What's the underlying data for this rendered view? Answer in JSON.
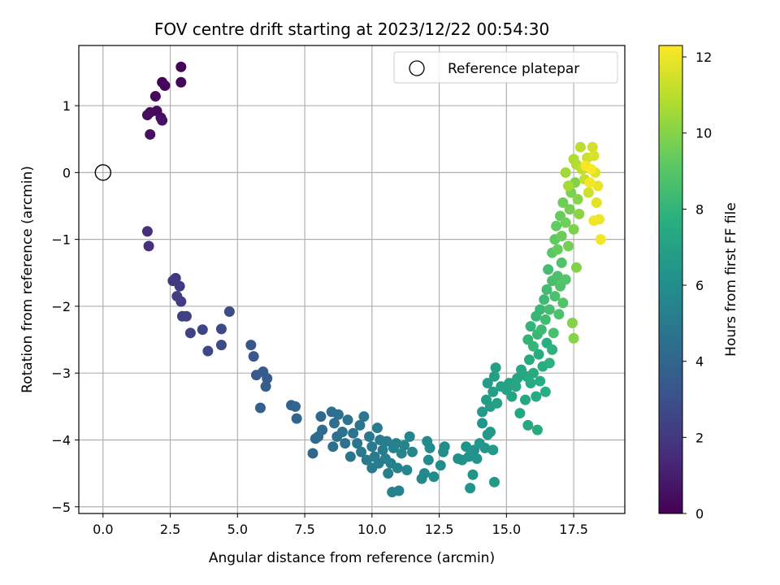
{
  "chart_data": {
    "type": "scatter",
    "title": "FOV centre drift starting at 2023/12/22 00:54:30",
    "xlabel": "Angular distance from reference (arcmin)",
    "ylabel": "Rotation from reference (arcmin)",
    "xlim": [
      -0.9,
      19.4
    ],
    "ylim": [
      -5.1,
      1.9
    ],
    "x_ticks": [
      "0.0",
      "2.5",
      "5.0",
      "7.5",
      "10.0",
      "12.5",
      "15.0",
      "17.5"
    ],
    "y_ticks": [
      "−5",
      "−4",
      "−3",
      "−2",
      "−1",
      "0",
      "1"
    ],
    "grid": true,
    "legend": {
      "position": "top-right",
      "entries": [
        "Reference platepar"
      ]
    },
    "reference_point": {
      "x": 0.0,
      "y": 0.0,
      "label": "Reference platepar"
    },
    "colorbar": {
      "label": "Hours from first FF file",
      "colormap": "viridis",
      "min": 0,
      "max": 12.3,
      "ticks": [
        "0",
        "2",
        "4",
        "6",
        "8",
        "10",
        "12"
      ]
    },
    "points": [
      [
        2.9,
        1.58,
        0.1
      ],
      [
        2.2,
        1.35,
        0.15
      ],
      [
        2.3,
        1.3,
        0.2
      ],
      [
        2.9,
        1.35,
        0.25
      ],
      [
        1.95,
        1.14,
        0.3
      ],
      [
        2.0,
        0.92,
        0.35
      ],
      [
        1.75,
        0.9,
        0.4
      ],
      [
        1.65,
        0.86,
        0.45
      ],
      [
        2.15,
        0.82,
        0.5
      ],
      [
        2.2,
        0.78,
        0.55
      ],
      [
        1.75,
        0.57,
        0.6
      ],
      [
        1.65,
        -0.88,
        1.6
      ],
      [
        1.7,
        -1.1,
        1.7
      ],
      [
        2.6,
        -1.62,
        2.0
      ],
      [
        2.7,
        -1.58,
        2.05
      ],
      [
        2.85,
        -1.7,
        2.1
      ],
      [
        2.75,
        -1.85,
        2.15
      ],
      [
        2.9,
        -1.93,
        2.2
      ],
      [
        2.95,
        -2.15,
        2.3
      ],
      [
        3.1,
        -2.15,
        2.35
      ],
      [
        3.25,
        -2.4,
        2.4
      ],
      [
        3.7,
        -2.35,
        2.5
      ],
      [
        3.9,
        -2.67,
        2.6
      ],
      [
        4.4,
        -2.34,
        2.7
      ],
      [
        4.4,
        -2.58,
        2.8
      ],
      [
        4.7,
        -2.08,
        2.9
      ],
      [
        5.5,
        -2.58,
        3.2
      ],
      [
        5.6,
        -2.75,
        3.3
      ],
      [
        5.7,
        -3.03,
        3.4
      ],
      [
        5.95,
        -2.98,
        3.5
      ],
      [
        6.1,
        -3.08,
        3.55
      ],
      [
        6.05,
        -3.2,
        3.6
      ],
      [
        5.85,
        -3.52,
        3.7
      ],
      [
        7.0,
        -3.48,
        3.9
      ],
      [
        7.15,
        -3.5,
        3.95
      ],
      [
        7.2,
        -3.68,
        4.0
      ],
      [
        7.8,
        -4.2,
        4.1
      ],
      [
        7.9,
        -3.98,
        4.15
      ],
      [
        8.1,
        -3.65,
        4.2
      ],
      [
        8.15,
        -3.85,
        4.25
      ],
      [
        8.0,
        -3.95,
        4.3
      ],
      [
        8.5,
        -3.58,
        4.4
      ],
      [
        8.6,
        -3.75,
        4.45
      ],
      [
        8.75,
        -3.62,
        4.5
      ],
      [
        8.55,
        -4.1,
        4.5
      ],
      [
        8.7,
        -3.95,
        4.55
      ],
      [
        8.9,
        -3.88,
        4.6
      ],
      [
        9.0,
        -4.05,
        4.6
      ],
      [
        9.1,
        -3.7,
        4.65
      ],
      [
        9.2,
        -4.25,
        4.7
      ],
      [
        9.3,
        -3.9,
        4.7
      ],
      [
        9.45,
        -4.05,
        4.75
      ],
      [
        9.55,
        -3.78,
        4.8
      ],
      [
        9.7,
        -3.65,
        4.85
      ],
      [
        9.6,
        -4.18,
        4.85
      ],
      [
        9.8,
        -4.3,
        4.9
      ],
      [
        9.9,
        -3.95,
        4.9
      ],
      [
        10.0,
        -4.1,
        4.95
      ],
      [
        10.0,
        -4.42,
        5.0
      ],
      [
        10.1,
        -4.25,
        5.0
      ],
      [
        10.2,
        -3.82,
        5.05
      ],
      [
        10.3,
        -4.0,
        5.05
      ],
      [
        10.25,
        -4.35,
        5.1
      ],
      [
        10.4,
        -4.15,
        5.15
      ],
      [
        10.5,
        -4.28,
        5.2
      ],
      [
        10.55,
        -4.02,
        5.2
      ],
      [
        10.6,
        -4.5,
        5.25
      ],
      [
        10.7,
        -4.35,
        5.3
      ],
      [
        10.8,
        -4.12,
        5.3
      ],
      [
        10.9,
        -4.05,
        5.35
      ],
      [
        10.75,
        -4.78,
        5.4
      ],
      [
        10.95,
        -4.42,
        5.4
      ],
      [
        11.0,
        -4.76,
        5.45
      ],
      [
        11.1,
        -4.2,
        5.5
      ],
      [
        11.2,
        -4.08,
        5.5
      ],
      [
        11.4,
        -3.95,
        5.55
      ],
      [
        11.5,
        -4.18,
        5.6
      ],
      [
        11.3,
        -4.45,
        5.6
      ],
      [
        11.85,
        -4.58,
        5.7
      ],
      [
        11.95,
        -4.5,
        5.75
      ],
      [
        12.05,
        -4.02,
        5.8
      ],
      [
        12.15,
        -4.12,
        5.8
      ],
      [
        12.3,
        -4.55,
        5.85
      ],
      [
        12.1,
        -4.3,
        5.85
      ],
      [
        12.55,
        -4.38,
        5.9
      ],
      [
        12.7,
        -4.1,
        5.95
      ],
      [
        12.65,
        -4.18,
        6.0
      ],
      [
        13.2,
        -4.28,
        6.1
      ],
      [
        13.35,
        -4.3,
        6.15
      ],
      [
        13.5,
        -4.1,
        6.2
      ],
      [
        13.6,
        -4.25,
        6.2
      ],
      [
        13.8,
        -4.15,
        6.25
      ],
      [
        13.9,
        -4.28,
        6.3
      ],
      [
        13.65,
        -4.72,
        6.3
      ],
      [
        13.75,
        -4.52,
        6.35
      ],
      [
        14.0,
        -4.05,
        6.4
      ],
      [
        14.1,
        -3.75,
        6.4
      ],
      [
        14.2,
        -4.12,
        6.45
      ],
      [
        14.3,
        -3.92,
        6.5
      ],
      [
        14.4,
        -3.88,
        6.55
      ],
      [
        14.5,
        -4.15,
        6.6
      ],
      [
        14.55,
        -4.63,
        6.6
      ],
      [
        14.1,
        -3.58,
        6.7
      ],
      [
        14.25,
        -3.4,
        6.75
      ],
      [
        14.3,
        -3.15,
        6.8
      ],
      [
        14.4,
        -3.5,
        6.8
      ],
      [
        14.5,
        -3.28,
        6.85
      ],
      [
        14.55,
        -3.05,
        6.9
      ],
      [
        14.6,
        -2.92,
        6.95
      ],
      [
        14.65,
        -3.45,
        6.95
      ],
      [
        14.8,
        -3.2,
        7.0
      ],
      [
        15.0,
        -3.25,
        7.05
      ],
      [
        15.1,
        -3.15,
        7.1
      ],
      [
        15.2,
        -3.35,
        7.1
      ],
      [
        15.35,
        -3.2,
        7.15
      ],
      [
        15.4,
        -3.08,
        7.2
      ],
      [
        15.5,
        -3.6,
        7.2
      ],
      [
        15.55,
        -2.95,
        7.25
      ],
      [
        15.7,
        -3.4,
        7.3
      ],
      [
        15.75,
        -3.05,
        7.35
      ],
      [
        15.8,
        -3.78,
        7.35
      ],
      [
        15.85,
        -2.8,
        7.4
      ],
      [
        15.9,
        -3.15,
        7.45
      ],
      [
        16.0,
        -3.0,
        7.5
      ],
      [
        16.1,
        -3.35,
        7.5
      ],
      [
        16.15,
        -3.85,
        7.5
      ],
      [
        16.2,
        -2.72,
        7.55
      ],
      [
        16.25,
        -3.12,
        7.6
      ],
      [
        16.35,
        -2.9,
        7.65
      ],
      [
        16.45,
        -3.28,
        7.7
      ],
      [
        16.5,
        -2.55,
        7.75
      ],
      [
        16.6,
        -2.85,
        7.8
      ],
      [
        16.7,
        -2.65,
        7.85
      ],
      [
        15.8,
        -2.5,
        8.0
      ],
      [
        15.9,
        -2.3,
        8.05
      ],
      [
        16.0,
        -2.6,
        8.1
      ],
      [
        16.1,
        -2.15,
        8.15
      ],
      [
        16.15,
        -2.42,
        8.2
      ],
      [
        16.25,
        -2.05,
        8.25
      ],
      [
        16.3,
        -2.35,
        8.3
      ],
      [
        16.4,
        -1.9,
        8.35
      ],
      [
        16.45,
        -2.2,
        8.4
      ],
      [
        16.5,
        -1.75,
        8.45
      ],
      [
        16.55,
        -1.45,
        8.5
      ],
      [
        16.6,
        -2.05,
        8.55
      ],
      [
        16.7,
        -1.62,
        8.6
      ],
      [
        16.75,
        -2.4,
        8.6
      ],
      [
        16.8,
        -1.85,
        8.65
      ],
      [
        16.9,
        -1.55,
        8.7
      ],
      [
        16.95,
        -2.12,
        8.75
      ],
      [
        17.0,
        -1.7,
        8.8
      ],
      [
        17.05,
        -1.35,
        8.85
      ],
      [
        17.1,
        -1.95,
        8.9
      ],
      [
        17.2,
        -1.6,
        8.95
      ],
      [
        16.7,
        -1.2,
        9.1
      ],
      [
        16.8,
        -1.0,
        9.2
      ],
      [
        16.85,
        -0.8,
        9.3
      ],
      [
        16.9,
        -1.15,
        9.35
      ],
      [
        17.0,
        -0.65,
        9.4
      ],
      [
        17.05,
        -0.95,
        9.5
      ],
      [
        17.1,
        -0.45,
        9.55
      ],
      [
        17.2,
        -0.75,
        9.6
      ],
      [
        17.3,
        -1.1,
        9.65
      ],
      [
        17.35,
        -0.55,
        9.7
      ],
      [
        17.4,
        -0.3,
        9.8
      ],
      [
        17.5,
        -0.85,
        9.85
      ],
      [
        17.55,
        -0.15,
        9.9
      ],
      [
        17.6,
        -1.42,
        9.95
      ],
      [
        17.45,
        -2.25,
        9.95
      ],
      [
        17.5,
        -2.48,
        10.0
      ],
      [
        17.65,
        -0.4,
        10.05
      ],
      [
        17.7,
        -0.62,
        10.1
      ],
      [
        17.2,
        0.0,
        10.5
      ],
      [
        17.3,
        -0.2,
        10.6
      ],
      [
        17.5,
        0.2,
        10.8
      ],
      [
        17.6,
        0.12,
        10.9
      ],
      [
        17.75,
        0.38,
        11.0
      ],
      [
        17.8,
        0.05,
        11.1
      ],
      [
        17.9,
        -0.1,
        11.2
      ],
      [
        18.0,
        0.22,
        11.3
      ],
      [
        18.05,
        -0.3,
        11.4
      ],
      [
        18.2,
        0.38,
        11.5
      ],
      [
        18.25,
        0.25,
        11.6
      ],
      [
        18.3,
        0.0,
        11.7
      ],
      [
        18.35,
        -0.45,
        11.8
      ],
      [
        18.4,
        -0.2,
        11.9
      ],
      [
        18.45,
        -0.7,
        12.0
      ],
      [
        18.25,
        -0.72,
        12.05
      ],
      [
        18.5,
        -1.0,
        12.1
      ],
      [
        18.1,
        -0.15,
        12.15
      ],
      [
        17.95,
        0.1,
        12.2
      ],
      [
        18.15,
        0.05,
        12.25
      ]
    ]
  }
}
